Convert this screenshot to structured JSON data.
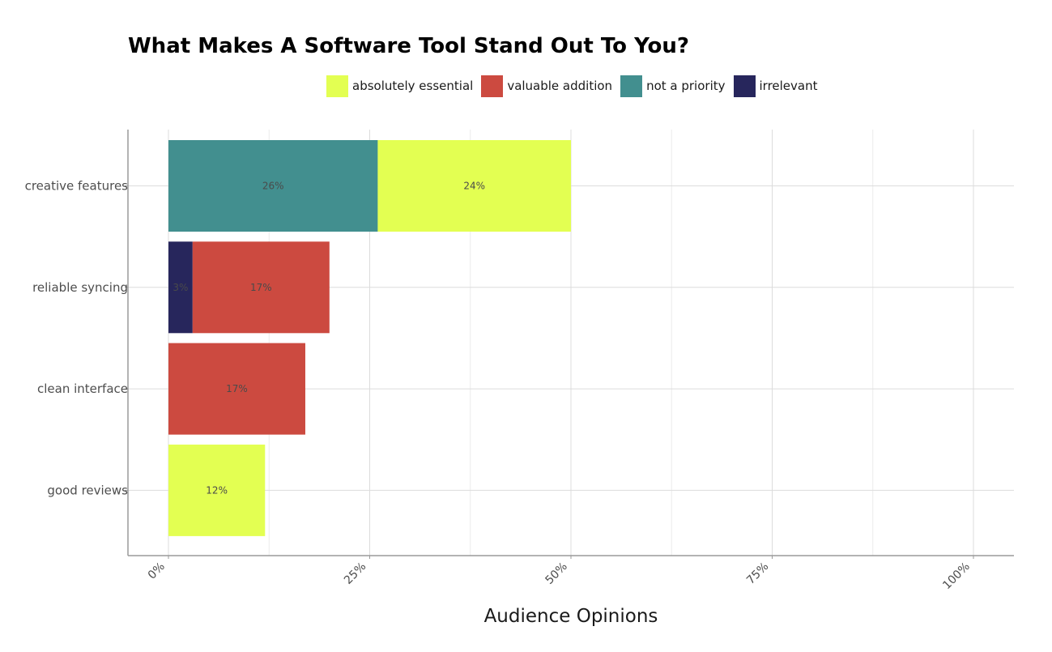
{
  "chart_data": {
    "type": "bar",
    "orientation": "horizontal",
    "stacked": true,
    "title": "What Makes A Software Tool Stand Out To You?",
    "xlabel": "Audience Opinions",
    "ylabel": "",
    "xlim": [
      0,
      100
    ],
    "x_ticks": [
      "0%",
      "25%",
      "50%",
      "75%",
      "100%"
    ],
    "grid": true,
    "legend_position": "top",
    "categories": [
      "creative features",
      "reliable syncing",
      "clean interface",
      "good reviews"
    ],
    "series": [
      {
        "name": "absolutely essential",
        "color": "#e3ff52",
        "values": [
          24,
          0,
          0,
          12
        ]
      },
      {
        "name": "valuable addition",
        "color": "#cc4a40",
        "values": [
          0,
          17,
          17,
          0
        ]
      },
      {
        "name": "not a priority",
        "color": "#428f8f",
        "values": [
          26,
          0,
          0,
          0
        ]
      },
      {
        "name": "irrelevant",
        "color": "#27265c",
        "values": [
          0,
          3,
          0,
          0
        ]
      }
    ],
    "stack_order": [
      "irrelevant",
      "not a priority",
      "valuable addition",
      "absolutely essential"
    ],
    "data_labels": [
      {
        "category": "creative features",
        "series": "not a priority",
        "text": "26%"
      },
      {
        "category": "creative features",
        "series": "absolutely essential",
        "text": "24%"
      },
      {
        "category": "reliable syncing",
        "series": "irrelevant",
        "text": "3%"
      },
      {
        "category": "reliable syncing",
        "series": "valuable addition",
        "text": "17%"
      },
      {
        "category": "clean interface",
        "series": "valuable addition",
        "text": "17%"
      },
      {
        "category": "good reviews",
        "series": "absolutely essential",
        "text": "12%"
      }
    ]
  }
}
